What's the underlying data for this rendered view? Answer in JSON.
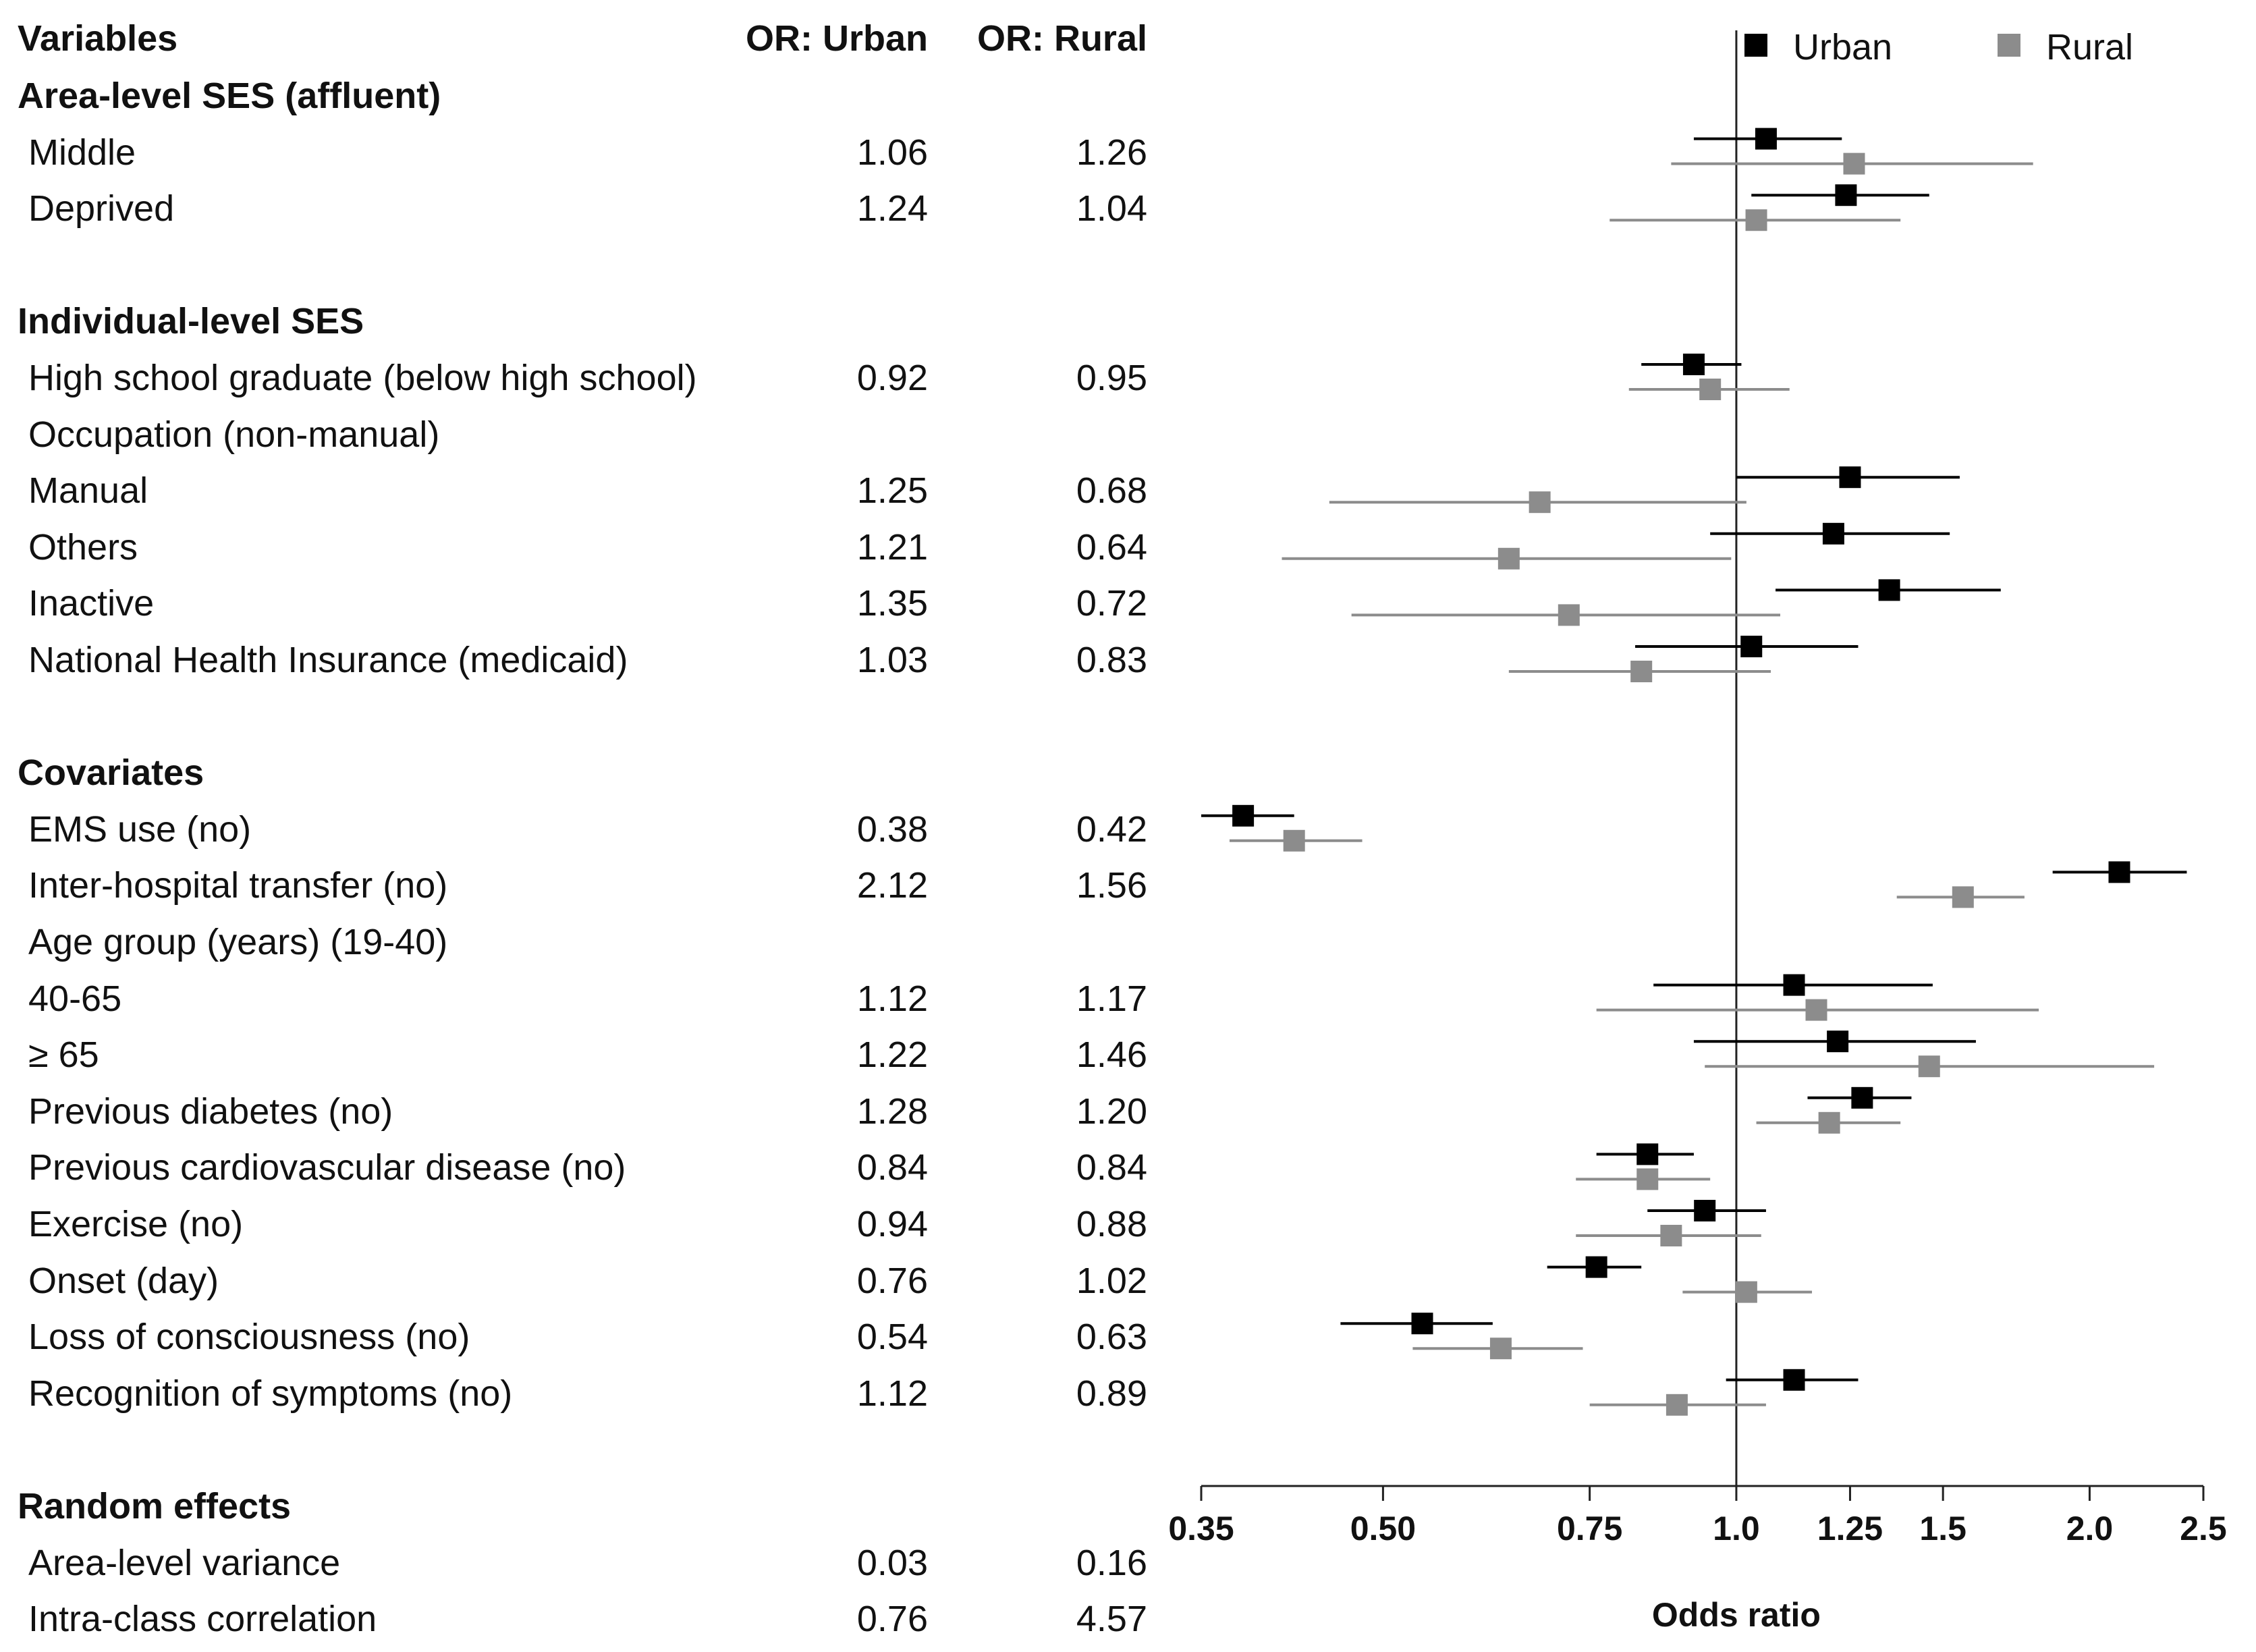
{
  "table": {
    "header": {
      "variables": "Variables",
      "or_urban": "OR: Urban",
      "or_rural": "OR: Rural"
    },
    "rows": [
      {
        "label": "Area-level SES (affluent)",
        "type": "section"
      },
      {
        "label": "Middle",
        "urban": "1.06",
        "rural": "1.26"
      },
      {
        "label": "Deprived",
        "urban": "1.24",
        "rural": "1.04"
      },
      {
        "label": "",
        "type": "spacer"
      },
      {
        "label": "Individual-level SES",
        "type": "section"
      },
      {
        "label": "High school graduate (below high school)",
        "urban": "0.92",
        "rural": "0.95"
      },
      {
        "label": "Occupation (non-manual)",
        "type": "subheader"
      },
      {
        "label": "Manual",
        "urban": "1.25",
        "rural": "0.68"
      },
      {
        "label": "Others",
        "urban": "1.21",
        "rural": "0.64"
      },
      {
        "label": "Inactive",
        "urban": "1.35",
        "rural": "0.72"
      },
      {
        "label": "National Health Insurance (medicaid)",
        "urban": "1.03",
        "rural": "0.83"
      },
      {
        "label": "",
        "type": "spacer"
      },
      {
        "label": "Covariates",
        "type": "section"
      },
      {
        "label": "EMS use (no)",
        "urban": "0.38",
        "rural": "0.42"
      },
      {
        "label": "Inter-hospital transfer (no)",
        "urban": "2.12",
        "rural": "1.56"
      },
      {
        "label": "Age group (years) (19-40)",
        "type": "subheader"
      },
      {
        "label": "40-65",
        "urban": "1.12",
        "rural": "1.17"
      },
      {
        "label": "≥ 65",
        "urban": "1.22",
        "rural": "1.46"
      },
      {
        "label": "Previous diabetes (no)",
        "urban": "1.28",
        "rural": "1.20"
      },
      {
        "label": "Previous cardiovascular disease (no)",
        "urban": "0.84",
        "rural": "0.84"
      },
      {
        "label": "Exercise (no)",
        "urban": "0.94",
        "rural": "0.88"
      },
      {
        "label": "Onset (day)",
        "urban": "0.76",
        "rural": "1.02"
      },
      {
        "label": "Loss of consciousness (no)",
        "urban": "0.54",
        "rural": "0.63"
      },
      {
        "label": "Recognition of symptoms (no)",
        "urban": "1.12",
        "rural": "0.89"
      },
      {
        "label": "",
        "type": "spacer"
      },
      {
        "label": "Random effects",
        "type": "section"
      },
      {
        "label": "Area-level variance",
        "urban": "0.03",
        "rural": "0.16"
      },
      {
        "label": "Intra-class correlation",
        "urban": "0.76",
        "rural": "4.57"
      }
    ]
  },
  "chart_data": {
    "type": "forest",
    "xlabel": "Odds ratio",
    "x_scale": "log",
    "xlim": [
      0.35,
      2.5
    ],
    "xticks": [
      0.35,
      0.5,
      0.75,
      1.0,
      1.25,
      1.5,
      2.0,
      2.5
    ],
    "xtick_labels": [
      "0.35",
      "0.50",
      "0.75",
      "1.0",
      "1.25",
      "1.5",
      "2.0",
      "2.5"
    ],
    "reference_line": 1.0,
    "legend": {
      "position": "top-right",
      "entries": [
        {
          "name": "Urban",
          "color": "#000000"
        },
        {
          "name": "Rural",
          "color": "#8c8c8c"
        }
      ]
    },
    "series": [
      {
        "name": "Urban",
        "color": "#000000",
        "points": [
          {
            "label": "Middle",
            "row": 1,
            "or": 1.06,
            "lo": 0.92,
            "hi": 1.23
          },
          {
            "label": "Deprived",
            "row": 2,
            "or": 1.24,
            "lo": 1.03,
            "hi": 1.46
          },
          {
            "label": "High school graduate (below high school)",
            "row": 5,
            "or": 0.92,
            "lo": 0.83,
            "hi": 1.01
          },
          {
            "label": "Manual",
            "row": 7,
            "or": 1.25,
            "lo": 1.0,
            "hi": 1.55
          },
          {
            "label": "Others",
            "row": 8,
            "or": 1.21,
            "lo": 0.95,
            "hi": 1.52
          },
          {
            "label": "Inactive",
            "row": 9,
            "or": 1.35,
            "lo": 1.08,
            "hi": 1.68
          },
          {
            "label": "National Health Insurance (medicaid)",
            "row": 10,
            "or": 1.03,
            "lo": 0.82,
            "hi": 1.27
          },
          {
            "label": "EMS use (no)",
            "row": 13,
            "or": 0.38,
            "lo": 0.35,
            "hi": 0.42
          },
          {
            "label": "Inter-hospital transfer (no)",
            "row": 14,
            "or": 2.12,
            "lo": 1.86,
            "hi": 2.42
          },
          {
            "label": "40-65",
            "row": 16,
            "or": 1.12,
            "lo": 0.85,
            "hi": 1.47
          },
          {
            "label": "≥ 65",
            "row": 17,
            "or": 1.22,
            "lo": 0.92,
            "hi": 1.6
          },
          {
            "label": "Previous diabetes (no)",
            "row": 18,
            "or": 1.28,
            "lo": 1.15,
            "hi": 1.41
          },
          {
            "label": "Previous cardiovascular disease (no)",
            "row": 19,
            "or": 0.84,
            "lo": 0.76,
            "hi": 0.92
          },
          {
            "label": "Exercise (no)",
            "row": 20,
            "or": 0.94,
            "lo": 0.84,
            "hi": 1.06
          },
          {
            "label": "Onset (day)",
            "row": 21,
            "or": 0.76,
            "lo": 0.69,
            "hi": 0.83
          },
          {
            "label": "Loss of consciousness (no)",
            "row": 22,
            "or": 0.54,
            "lo": 0.46,
            "hi": 0.62
          },
          {
            "label": "Recognition of symptoms (no)",
            "row": 23,
            "or": 1.12,
            "lo": 0.98,
            "hi": 1.27
          }
        ]
      },
      {
        "name": "Rural",
        "color": "#8c8c8c",
        "points": [
          {
            "label": "Middle",
            "row": 1,
            "or": 1.26,
            "lo": 0.88,
            "hi": 1.79
          },
          {
            "label": "Deprived",
            "row": 2,
            "or": 1.04,
            "lo": 0.78,
            "hi": 1.38
          },
          {
            "label": "High school graduate (below high school)",
            "row": 5,
            "or": 0.95,
            "lo": 0.81,
            "hi": 1.11
          },
          {
            "label": "Manual",
            "row": 7,
            "or": 0.68,
            "lo": 0.45,
            "hi": 1.02
          },
          {
            "label": "Others",
            "row": 8,
            "or": 0.64,
            "lo": 0.41,
            "hi": 0.99
          },
          {
            "label": "Inactive",
            "row": 9,
            "or": 0.72,
            "lo": 0.47,
            "hi": 1.09
          },
          {
            "label": "National Health Insurance (medicaid)",
            "row": 10,
            "or": 0.83,
            "lo": 0.64,
            "hi": 1.07
          },
          {
            "label": "EMS use (no)",
            "row": 13,
            "or": 0.42,
            "lo": 0.37,
            "hi": 0.48
          },
          {
            "label": "Inter-hospital transfer (no)",
            "row": 14,
            "or": 1.56,
            "lo": 1.37,
            "hi": 1.76
          },
          {
            "label": "40-65",
            "row": 16,
            "or": 1.17,
            "lo": 0.76,
            "hi": 1.81
          },
          {
            "label": "≥ 65",
            "row": 17,
            "or": 1.46,
            "lo": 0.94,
            "hi": 2.27
          },
          {
            "label": "Previous diabetes (no)",
            "row": 18,
            "or": 1.2,
            "lo": 1.04,
            "hi": 1.38
          },
          {
            "label": "Previous cardiovascular disease (no)",
            "row": 19,
            "or": 0.84,
            "lo": 0.73,
            "hi": 0.95
          },
          {
            "label": "Exercise (no)",
            "row": 20,
            "or": 0.88,
            "lo": 0.73,
            "hi": 1.05
          },
          {
            "label": "Onset (day)",
            "row": 21,
            "or": 1.02,
            "lo": 0.9,
            "hi": 1.16
          },
          {
            "label": "Loss of consciousness (no)",
            "row": 22,
            "or": 0.63,
            "lo": 0.53,
            "hi": 0.74
          },
          {
            "label": "Recognition of symptoms (no)",
            "row": 23,
            "or": 0.89,
            "lo": 0.75,
            "hi": 1.06
          }
        ]
      }
    ]
  }
}
